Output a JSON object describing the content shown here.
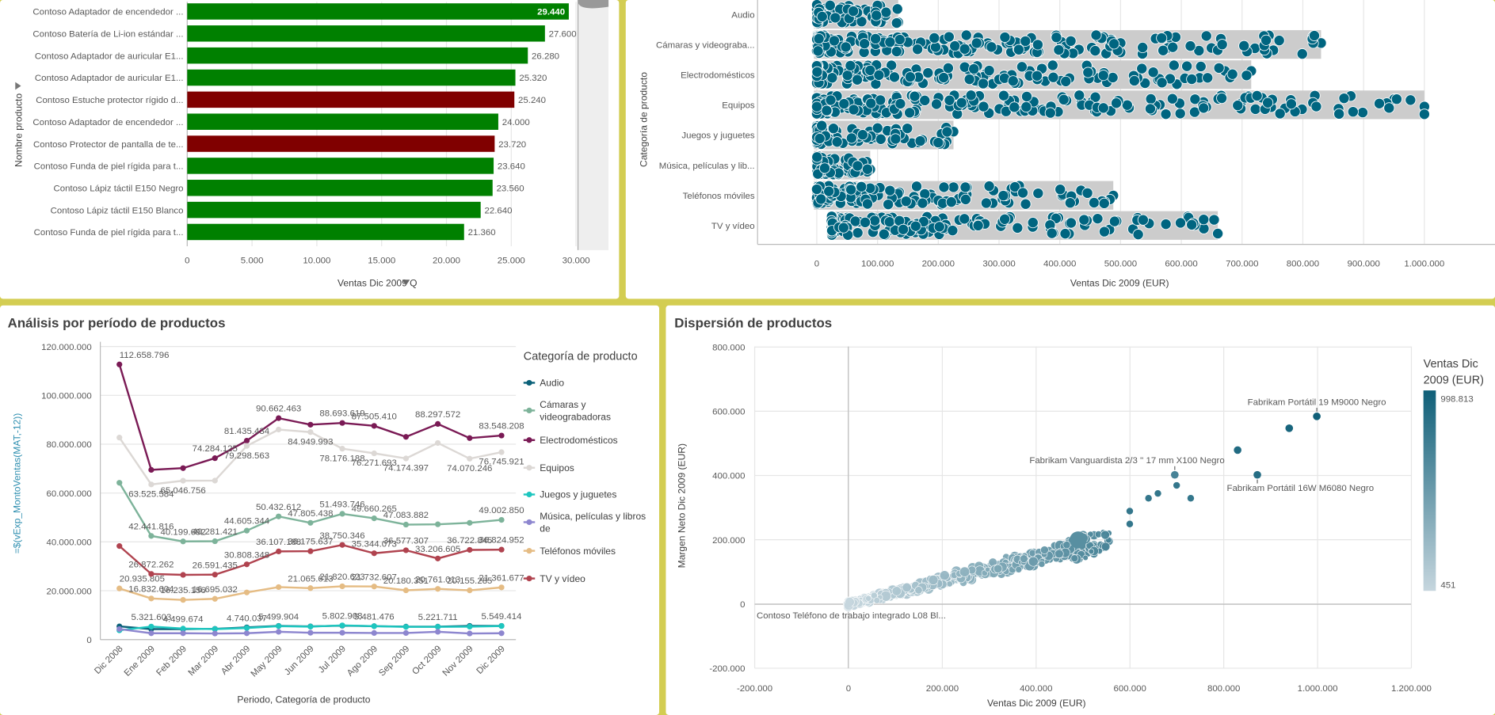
{
  "panels": {
    "line_title": "Análisis por período de productos",
    "scatter_title": "Dispersión de productos"
  },
  "chart_data": [
    {
      "type": "bar",
      "orientation": "horizontal",
      "ylabel": "Nombre producto",
      "xlabel": "Ventas Dic 2009 Q",
      "xlim": [
        0,
        30000
      ],
      "x_ticks": [
        "0",
        "5.000",
        "10.000",
        "15.000",
        "20.000",
        "25.000",
        "30.000"
      ],
      "categories": [
        "Contoso Adaptador de encendedor ...",
        "Contoso Batería de Li-ion estándar ...",
        "Contoso Adaptador de auricular E1...",
        "Contoso Adaptador de auricular E1...",
        "Contoso Estuche protector rígido d...",
        "Contoso Adaptador de encendedor ...",
        "Contoso Protector de pantalla de te...",
        "Contoso Funda de piel rígida para t...",
        "Contoso Lápiz táctil E150 Negro",
        "Contoso Lápiz táctil E150 Blanco",
        "Contoso Funda de piel rígida para t..."
      ],
      "values": [
        29440,
        27600,
        26280,
        25320,
        25240,
        24000,
        23720,
        23640,
        23560,
        22640,
        21360
      ],
      "data_labels": [
        "29.440",
        "27.600",
        "26.280",
        "25.320",
        "25.240",
        "24.000",
        "23.720",
        "23.640",
        "23.560",
        "22.640",
        "21.360"
      ],
      "colors": [
        "#008000",
        "#008000",
        "#008000",
        "#008000",
        "#800000",
        "#008000",
        "#800000",
        "#008000",
        "#008000",
        "#008000",
        "#008000"
      ],
      "grid": true
    },
    {
      "type": "scatter",
      "subtype": "distribution-plot",
      "ylabel": "Categoría de producto",
      "xlabel": "Ventas  Dic 2009 (EUR)",
      "xlim": [
        0,
        1000000
      ],
      "x_ticks": [
        "0",
        "100.000",
        "200.000",
        "300.000",
        "400.000",
        "500.000",
        "600.000",
        "700.000",
        "800.000",
        "900.000",
        "1.000.000"
      ],
      "categories": [
        "Audio",
        "Cámaras y videograba...",
        "Electrodomésticos",
        "Equipos",
        "Juegos y juguetes",
        "Música, películas y lib...",
        "Teléfonos móviles",
        "TV y vídeo"
      ],
      "ranges": [
        [
          0,
          134000
        ],
        [
          0,
          830000
        ],
        [
          0,
          715000
        ],
        [
          0,
          1000000
        ],
        [
          0,
          225000
        ],
        [
          0,
          88000
        ],
        [
          0,
          488000
        ],
        [
          24000,
          660000
        ]
      ],
      "dot_color": "#006580",
      "box_color": "#cccccc"
    },
    {
      "type": "line",
      "ylabel": "=$(vExp_MontoVentas(MAT,-12))",
      "xlabel": "Periodo, Categoría de producto",
      "legend_title": "Categoría de producto",
      "legend": "right",
      "ylim": [
        0,
        120000000
      ],
      "y_ticks": [
        "0",
        "20.000.000",
        "40.000.000",
        "60.000.000",
        "80.000.000",
        "100.000.000",
        "120.000.000"
      ],
      "categories": [
        "Dic 2008",
        "Ene 2009",
        "Feb 2009",
        "Mar 2009",
        "Abr 2009",
        "May 2009",
        "Jun 2009",
        "Jul 2009",
        "Ago 2009",
        "Sep 2009",
        "Oct 2009",
        "Nov 2009",
        "Dic 2009"
      ],
      "series": [
        {
          "name": "Audio",
          "color": "#0b6179",
          "values": [
            5400000,
            4300000,
            4300000,
            4400000,
            5000000,
            5600000,
            5400000,
            5700000,
            5500000,
            5300000,
            5300000,
            5600000,
            5600000
          ],
          "labels": [
            null,
            null,
            null,
            null,
            null,
            null,
            null,
            null,
            null,
            null,
            null,
            null,
            null
          ]
        },
        {
          "name": "Cámaras y videograbadoras",
          "color": "#7db39a",
          "values": [
            64200000,
            42441816,
            40199692,
            40281421,
            44605344,
            50432612,
            47805438,
            51493746,
            49660265,
            47083882,
            47200000,
            47800000,
            49002850
          ],
          "labels": [
            null,
            "42.441.816",
            "40.199.692",
            "40.281.421",
            "44.605.344",
            "50.432.612",
            "47.805.438",
            "51.493.746",
            "49.660.265",
            "47.083.882",
            null,
            null,
            "49.002.850"
          ]
        },
        {
          "name": "Electrodomésticos",
          "color": "#7a1a55",
          "values": [
            112658796,
            69500000,
            70200000,
            74284125,
            81435434,
            90662463,
            88000000,
            88693619,
            87505410,
            83000000,
            88297572,
            82500000,
            83548208
          ],
          "labels": [
            "112.658.796",
            null,
            null,
            "74.284.125",
            "81.435.434",
            "90.662.463",
            null,
            "88.693.619",
            "87.505.410",
            null,
            "88.297.572",
            null,
            "83.548.208"
          ]
        },
        {
          "name": "Equipos",
          "color": "#dcd8d5",
          "values": [
            82700000,
            63525584,
            65046756,
            65100000,
            79298563,
            86000000,
            84949993,
            78176188,
            76271693,
            74174397,
            80500000,
            74070246,
            76745921
          ],
          "labels": [
            null,
            "63.525.584",
            "65.046.756",
            null,
            "79.298.563",
            null,
            "84.949.993",
            "78.176.188",
            "76.271.693",
            "74.174.397",
            null,
            "74.070.246",
            "76.745.921"
          ]
        },
        {
          "name": "Juegos y juguetes",
          "color": "#1ec6bf",
          "values": [
            3800000,
            5321603,
            4499674,
            4300000,
            4740037,
            5499904,
            5300000,
            5802908,
            5481476,
            5200000,
            5221711,
            5300000,
            5549414
          ],
          "labels": [
            null,
            "5.321.603",
            "4.499.674",
            null,
            "4.740.037",
            "5.499.904",
            null,
            "5.802.908",
            "5.481.476",
            null,
            "5.221.711",
            null,
            "5.549.414"
          ]
        },
        {
          "name": "Música, películas y libros de",
          "color": "#8d86cf",
          "values": [
            4300000,
            2600000,
            2600000,
            2500000,
            2600000,
            3200000,
            2800000,
            2800000,
            2700000,
            2700000,
            3200000,
            2500000,
            2600000
          ],
          "labels": [
            null,
            null,
            null,
            null,
            null,
            null,
            null,
            null,
            null,
            null,
            null,
            null,
            null
          ]
        },
        {
          "name": "Teléfonos móviles",
          "color": "#e5bc84",
          "values": [
            20935805,
            16832604,
            16235156,
            16695032,
            19300000,
            21500000,
            21065613,
            21820623,
            21732607,
            20180351,
            20761013,
            20155285,
            21361677
          ],
          "labels": [
            "20.935.805",
            "16.832.604",
            "16.235.156",
            "16.695.032",
            null,
            null,
            "21.065.613",
            "21.820.623",
            "21.732.607",
            "20.180.351",
            "20.761.013",
            "20.155.285",
            "21.361.677"
          ]
        },
        {
          "name": "TV y vídeo",
          "color": "#b0434f",
          "values": [
            38300000,
            26872262,
            26500000,
            26591435,
            30808348,
            36107188,
            36175637,
            38750346,
            35344073,
            36577307,
            33206605,
            36722845,
            36824952
          ],
          "labels": [
            null,
            "26.872.262",
            null,
            "26.591.435",
            "30.808.348",
            "36.107.188",
            "36.175.637",
            "38.750.346",
            "35.344.073",
            "36.577.307",
            "33.206.605",
            "36.722.845",
            "36.824.952"
          ]
        }
      ],
      "legend_labels": [
        [
          "Audio"
        ],
        [
          "Cámaras y",
          "videograbadoras"
        ],
        [
          "Electrodomésticos"
        ],
        [
          "Equipos"
        ],
        [
          "Juegos y juguetes"
        ],
        [
          "Música, películas y libros",
          "de"
        ],
        [
          "Teléfonos móviles"
        ],
        [
          "TV y vídeo"
        ]
      ],
      "grid": true
    },
    {
      "type": "scatter",
      "xlabel": "Ventas Dic 2009 (EUR)",
      "ylabel": "Margen Neto Dic 2009 (EUR)",
      "xlim": [
        -200000,
        1200000
      ],
      "ylim": [
        -200000,
        800000
      ],
      "x_ticks": [
        "-200.000",
        "0",
        "200.000",
        "400.000",
        "600.000",
        "800.000",
        "1.000.000",
        "1.200.000"
      ],
      "y_ticks": [
        "-200.000",
        "0",
        "200.000",
        "400.000",
        "600.000",
        "800.000"
      ],
      "color_legend_title": [
        "Ventas  Dic",
        "2009 (EUR)"
      ],
      "color_legend_max": "998.813",
      "color_legend_min": "451",
      "color_range": [
        "#c6d6de",
        "#0f5f78"
      ],
      "annotated_points": [
        {
          "label": "Fabrikam Portátil 19 M9000 Negro",
          "x": 998813,
          "y": 585000
        },
        {
          "label": "Fabrikam  Vanguardista 2/3 '' 17 mm X100 Negro",
          "x": 696000,
          "y": 403000
        },
        {
          "label": "Fabrikam Portátil 16W M6080 Negro",
          "x": 872000,
          "y": 403000
        },
        {
          "label": "Contoso Teléfono de trabajo integrado L08 Bl...",
          "x": 451,
          "y": 0
        }
      ],
      "grid": true
    }
  ]
}
